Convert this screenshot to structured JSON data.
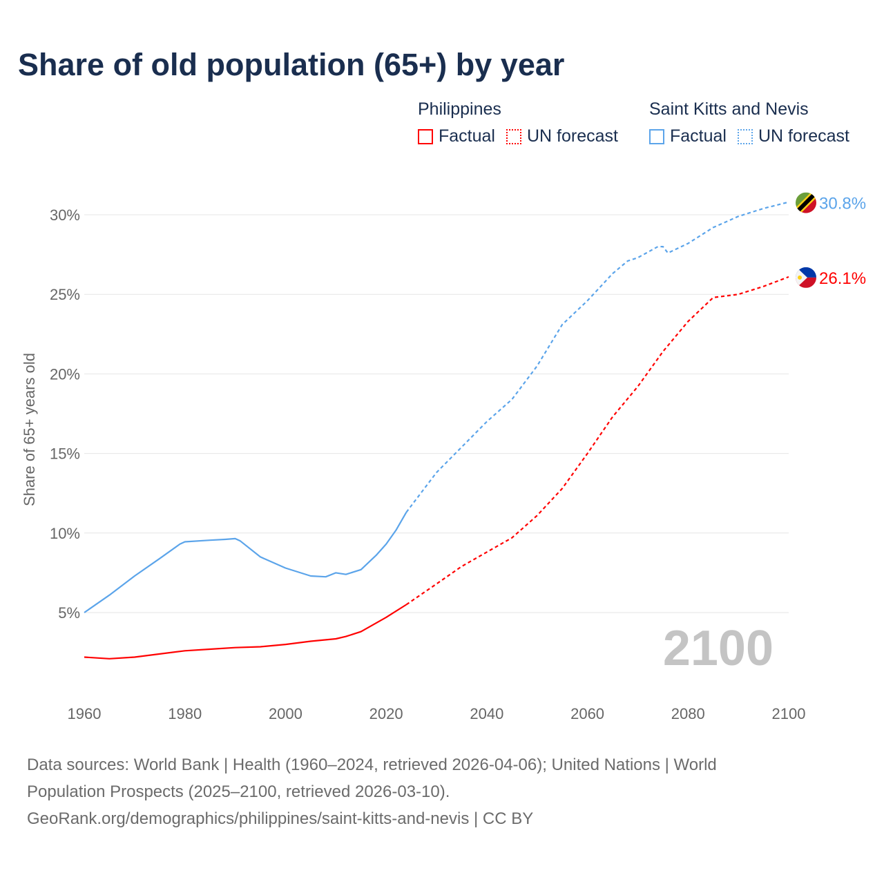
{
  "title": "Share of old population (65+) by year",
  "legend": {
    "groups": [
      {
        "country": "Philippines",
        "color": "#ff0000",
        "factual": "Factual",
        "forecast": "UN forecast"
      },
      {
        "country": "Saint Kitts and Nevis",
        "color": "#5ba4ea",
        "factual": "Factual",
        "forecast": "UN forecast"
      }
    ]
  },
  "year_watermark": "2100",
  "source_lines": [
    "Data sources: World Bank | Health (1960–2024, retrieved 2026-04-06); United Nations | World",
    "Population Prospects (2025–2100, retrieved 2026-03-10).",
    "GeoRank.org/demographics/philippines/saint-kitts-and-nevis | CC BY"
  ],
  "chart_data": {
    "type": "line",
    "title": "Share of old population (65+) by year",
    "xlabel": "",
    "ylabel": "Share of 65+ years old",
    "xlim": [
      1960,
      2100
    ],
    "ylim": [
      0,
      32
    ],
    "x_ticks": [
      "1960",
      "1980",
      "2000",
      "2020",
      "2040",
      "2060",
      "2080",
      "2100"
    ],
    "y_ticks": [
      "5%",
      "10%",
      "15%",
      "20%",
      "25%",
      "30%"
    ],
    "grid": true,
    "forecast_start": 2024,
    "series": [
      {
        "name": "Philippines",
        "color": "#ff0000",
        "end_label": "26.1%",
        "x": [
          1960,
          1965,
          1970,
          1975,
          1980,
          1985,
          1990,
          1995,
          2000,
          2005,
          2010,
          2012,
          2015,
          2020,
          2024,
          2030,
          2035,
          2040,
          2045,
          2050,
          2055,
          2060,
          2065,
          2070,
          2075,
          2080,
          2085,
          2090,
          2095,
          2100
        ],
        "y": [
          2.2,
          2.1,
          2.2,
          2.4,
          2.6,
          2.7,
          2.8,
          2.85,
          3.0,
          3.2,
          3.35,
          3.5,
          3.8,
          4.7,
          5.5,
          6.8,
          7.9,
          8.8,
          9.7,
          11.1,
          12.8,
          15.0,
          17.3,
          19.2,
          21.4,
          23.3,
          24.8,
          25.0,
          25.5,
          26.1
        ]
      },
      {
        "name": "Saint Kitts and Nevis",
        "color": "#5ba4ea",
        "end_label": "30.8%",
        "x": [
          1960,
          1965,
          1970,
          1975,
          1979,
          1980,
          1985,
          1988,
          1990,
          1991,
          1995,
          2000,
          2005,
          2008,
          2010,
          2012,
          2015,
          2018,
          2020,
          2022,
          2024,
          2030,
          2035,
          2040,
          2045,
          2050,
          2055,
          2060,
          2065,
          2068,
          2070,
          2074,
          2075,
          2076,
          2080,
          2085,
          2090,
          2095,
          2100
        ],
        "y": [
          5.0,
          6.1,
          7.3,
          8.4,
          9.3,
          9.45,
          9.55,
          9.6,
          9.65,
          9.5,
          8.5,
          7.8,
          7.3,
          7.25,
          7.5,
          7.4,
          7.7,
          8.6,
          9.3,
          10.2,
          11.3,
          13.8,
          15.4,
          17.0,
          18.4,
          20.5,
          23.1,
          24.6,
          26.3,
          27.1,
          27.3,
          28.0,
          28.0,
          27.6,
          28.2,
          29.2,
          29.9,
          30.4,
          30.8
        ]
      }
    ]
  }
}
